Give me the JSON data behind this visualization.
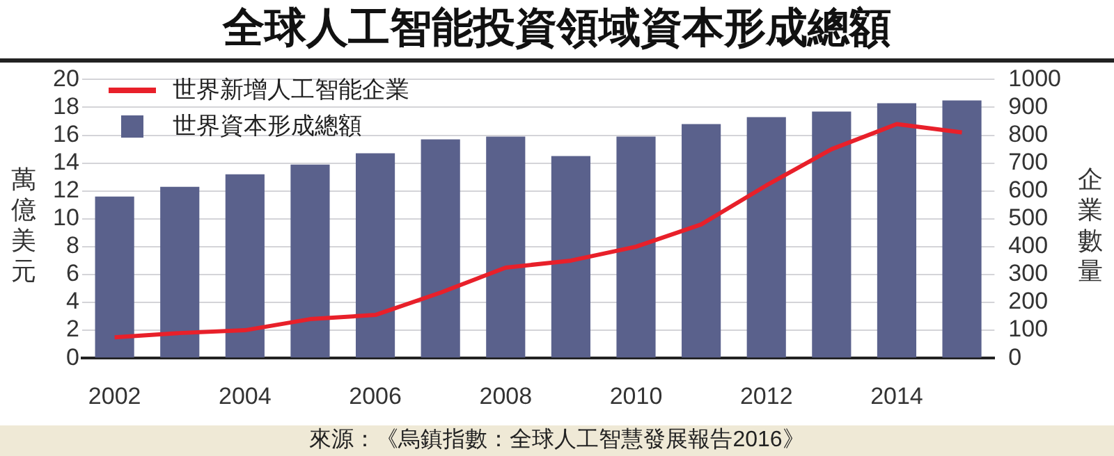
{
  "chart_data": {
    "type": "bar",
    "title": "全球人工智能投資領域資本形成總額",
    "categories": [
      "2002",
      null,
      "2004",
      null,
      "2006",
      null,
      "2008",
      null,
      "2010",
      null,
      "2012",
      null,
      "2014",
      null
    ],
    "series": [
      {
        "name": "世界新增人工智能企業",
        "type": "line",
        "axis": "y2",
        "color": "#e8202a",
        "values": [
          75,
          90,
          100,
          140,
          155,
          235,
          325,
          350,
          400,
          480,
          620,
          750,
          840,
          810
        ]
      },
      {
        "name": "世界資本形成總額",
        "color": "#5a618c",
        "values": [
          11.6,
          12.3,
          13.2,
          13.9,
          14.7,
          15.7,
          15.9,
          14.5,
          15.9,
          16.8,
          17.3,
          17.7,
          18.3,
          18.5
        ]
      }
    ],
    "ylabel": "萬億美元",
    "y2label": "企業數量",
    "ylim": [
      0,
      20
    ],
    "yticks": [
      0,
      2,
      4,
      6,
      8,
      10,
      12,
      14,
      16,
      18,
      20
    ],
    "y2lim": [
      0,
      1000
    ],
    "y2ticks": [
      0,
      100,
      200,
      300,
      400,
      500,
      600,
      700,
      800,
      900,
      1000
    ],
    "grid": "y",
    "legend": "top left",
    "marker": "none",
    "annotations": [
      "來源：《烏鎮指數：全球人工智慧發展報告2016》"
    ]
  }
}
